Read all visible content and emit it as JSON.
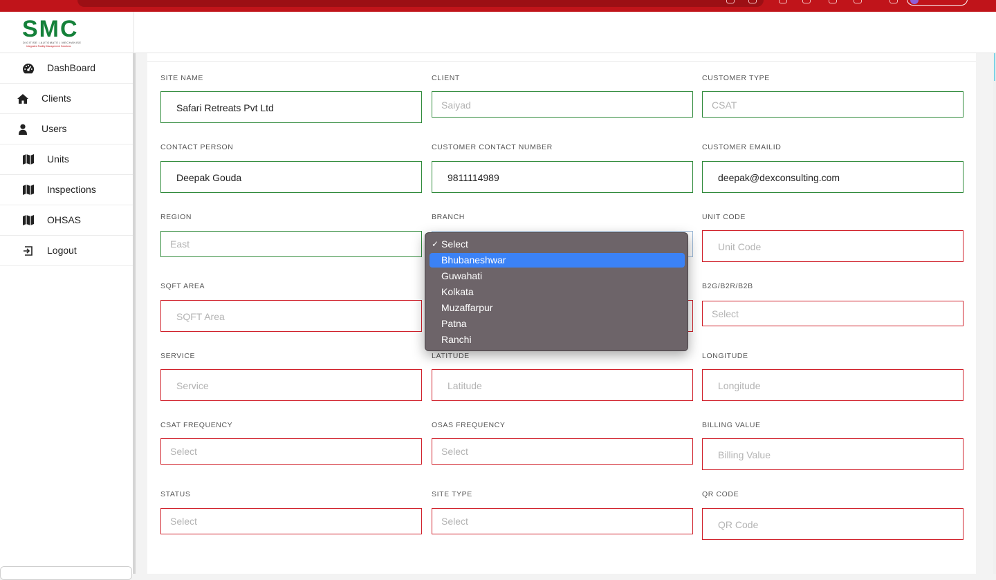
{
  "app": {
    "logo_text": "SMC",
    "logo_tagline": "DIGITISE | AUTOMATE | MECHANISE",
    "logo_subtitle": "Integrated Facility Management Solutions"
  },
  "sidebar": {
    "items": [
      {
        "label": "DashBoard",
        "icon": "dashboard-icon"
      },
      {
        "label": "Clients",
        "icon": "home-icon"
      },
      {
        "label": "Users",
        "icon": "user-icon"
      },
      {
        "label": "Units",
        "icon": "map-icon"
      },
      {
        "label": "Inspections",
        "icon": "map-icon"
      },
      {
        "label": "OHSAS",
        "icon": "map-icon"
      },
      {
        "label": "Logout",
        "icon": "sign-out-icon"
      }
    ]
  },
  "form": {
    "site_name": {
      "label": "SITE NAME",
      "value": "Safari Retreats Pvt Ltd"
    },
    "client": {
      "label": "CLIENT",
      "value": "Saiyad"
    },
    "customer_type": {
      "label": "CUSTOMER TYPE",
      "value": "CSAT"
    },
    "contact_person": {
      "label": "CONTACT PERSON",
      "value": "Deepak Gouda"
    },
    "customer_contact_number": {
      "label": "CUSTOMER CONTACT NUMBER",
      "value": "9811114989"
    },
    "customer_emailid": {
      "label": "CUSTOMER EMAILID",
      "value": "deepak@dexconsulting.com"
    },
    "region": {
      "label": "REGION",
      "value": "East"
    },
    "branch": {
      "label": "BRANCH"
    },
    "unit_code": {
      "label": "UNIT CODE",
      "placeholder": "Unit Code"
    },
    "sqft_area": {
      "label": "SQFT AREA",
      "placeholder": "SQFT Area"
    },
    "b2g": {
      "label": "B2G/B2R/B2B",
      "value": "Select"
    },
    "service": {
      "label": "SERVICE",
      "placeholder": "Service"
    },
    "latitude": {
      "label": "LATITUDE",
      "placeholder": "Latitude"
    },
    "longitude": {
      "label": "LONGITUDE",
      "placeholder": "Longitude"
    },
    "csat_frequency": {
      "label": "CSAT FREQUENCY",
      "value": "Select"
    },
    "osas_frequency": {
      "label": "OSAS FREQUENCY",
      "value": "Select"
    },
    "billing_value": {
      "label": "BILLING VALUE",
      "placeholder": "Billing Value"
    },
    "status": {
      "label": "STATUS",
      "value": "Select"
    },
    "site_type": {
      "label": "SITE TYPE",
      "value": "Select"
    },
    "qr_code": {
      "label": "QR CODE",
      "placeholder": "QR Code"
    }
  },
  "branch_dropdown": {
    "check_mark": "✓",
    "options": [
      "Select",
      "Bhubaneshwar",
      "Guwahati",
      "Kolkata",
      "Muzaffarpur",
      "Patna",
      "Ranchi"
    ],
    "checked": "Select",
    "highlighted": "Bhubaneshwar"
  },
  "colors": {
    "brand_green": "#15813a",
    "browser_red": "#c0141a",
    "valid_border": "#2f8a3a",
    "error_border": "#d0202a",
    "highlight_blue": "#3b82f6",
    "dropdown_bg": "#6d6469"
  }
}
